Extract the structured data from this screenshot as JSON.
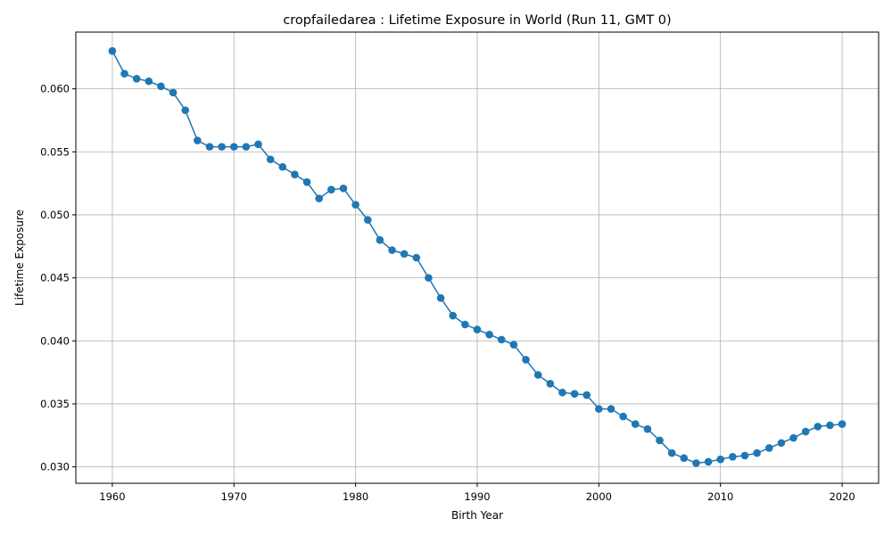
{
  "chart_data": {
    "type": "line",
    "title": "cropfailedarea : Lifetime Exposure in World (Run 11, GMT 0)",
    "xlabel": "Birth Year",
    "ylabel": "Lifetime Exposure",
    "xlim": [
      1957,
      2023
    ],
    "ylim": [
      0.0287,
      0.0645
    ],
    "xticks": [
      1960,
      1970,
      1980,
      1990,
      2000,
      2010,
      2020
    ],
    "xtick_labels": [
      "1960",
      "1970",
      "1980",
      "1990",
      "2000",
      "2010",
      "2020"
    ],
    "yticks": [
      0.03,
      0.035,
      0.04,
      0.045,
      0.05,
      0.055,
      0.06
    ],
    "ytick_labels": [
      "0.030",
      "0.035",
      "0.040",
      "0.045",
      "0.050",
      "0.055",
      "0.060"
    ],
    "grid": true,
    "color": "#1f77b4",
    "marker": "circle",
    "series": [
      {
        "x": [
          1960,
          1961,
          1962,
          1963,
          1964,
          1965,
          1966,
          1967,
          1968,
          1969,
          1970,
          1971,
          1972,
          1973,
          1974,
          1975,
          1976,
          1977,
          1978,
          1979,
          1980,
          1981,
          1982,
          1983,
          1984,
          1985,
          1986,
          1987,
          1988,
          1989,
          1990,
          1991,
          1992,
          1993,
          1994,
          1995,
          1996,
          1997,
          1998,
          1999,
          2000,
          2001,
          2002,
          2003,
          2004,
          2005,
          2006,
          2007,
          2008,
          2009,
          2010,
          2011,
          2012,
          2013,
          2014,
          2015,
          2016,
          2017,
          2018,
          2019,
          2020
        ],
        "values": [
          0.063,
          0.0612,
          0.0608,
          0.0606,
          0.0602,
          0.0597,
          0.0583,
          0.0559,
          0.0554,
          0.0554,
          0.0554,
          0.0554,
          0.0556,
          0.0544,
          0.0538,
          0.0532,
          0.0526,
          0.0513,
          0.052,
          0.0521,
          0.0508,
          0.0496,
          0.048,
          0.0472,
          0.0469,
          0.0466,
          0.045,
          0.0434,
          0.042,
          0.0413,
          0.0409,
          0.0405,
          0.0401,
          0.0397,
          0.0385,
          0.0373,
          0.0366,
          0.0359,
          0.0358,
          0.0357,
          0.0346,
          0.0346,
          0.034,
          0.0334,
          0.033,
          0.0321,
          0.0311,
          0.0307,
          0.0303,
          0.0304,
          0.0306,
          0.0308,
          0.0309,
          0.0311,
          0.0315,
          0.0319,
          0.0323,
          0.0328,
          0.0332,
          0.0333,
          0.0334
        ]
      }
    ]
  }
}
